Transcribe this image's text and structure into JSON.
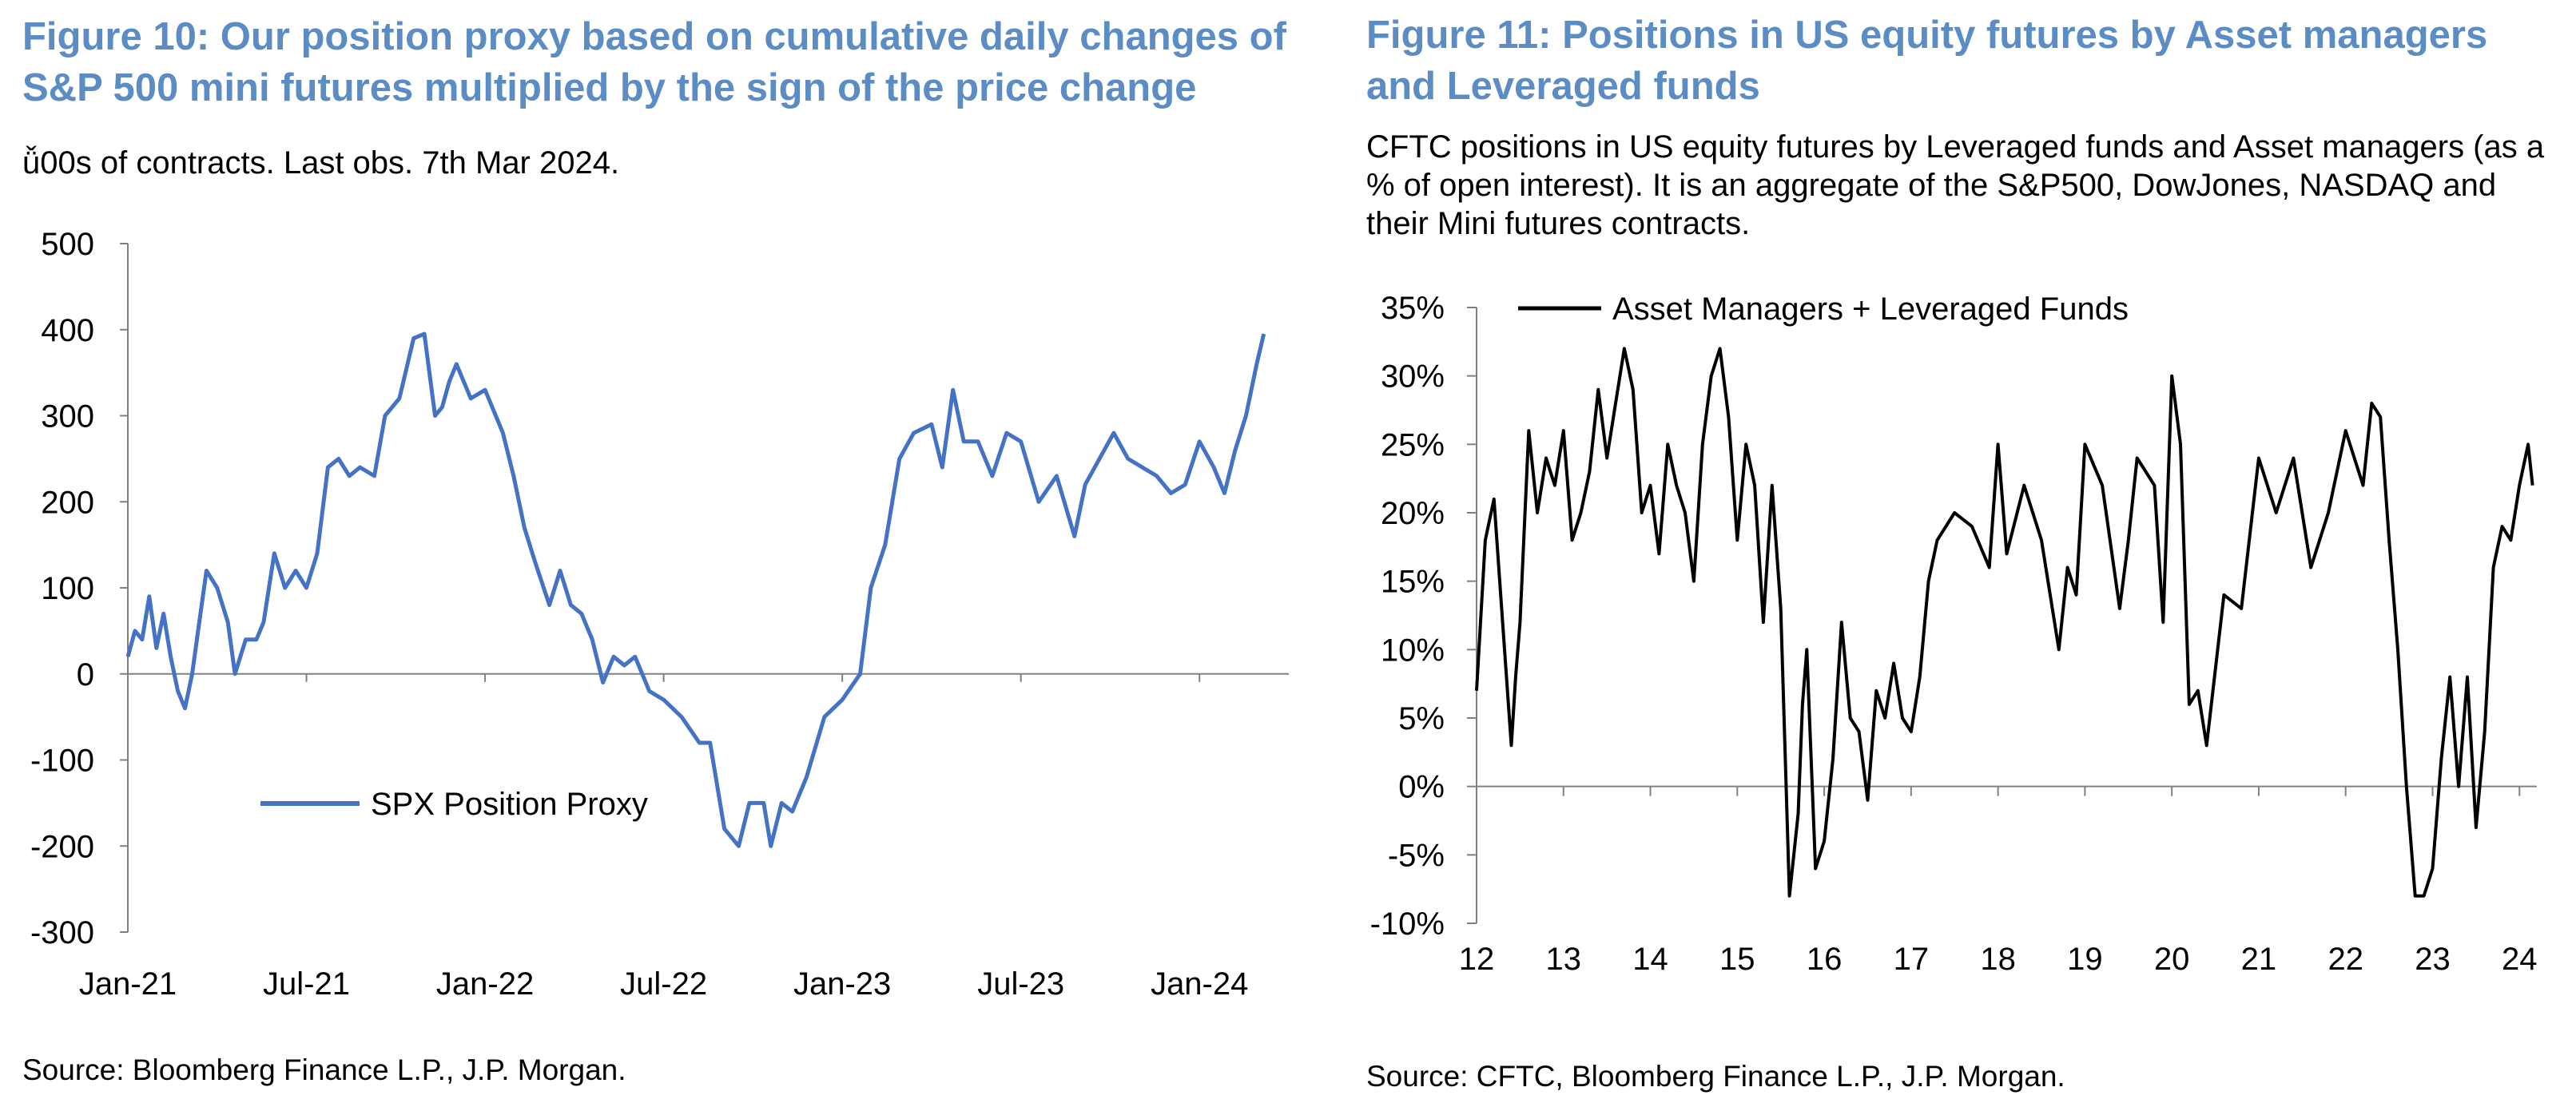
{
  "colors": {
    "title": "#5b8cc4",
    "left_series": "#4472c4",
    "right_series": "#000000",
    "axis": "#808080"
  },
  "left": {
    "title": "Figure 10: Our position proxy based on cumulative daily changes of S&P 500 mini futures multiplied by the sign of the price change",
    "subtitle": "ǚ00s of contracts. Last obs. 7th Mar 2024.",
    "source": "Source: Bloomberg Finance L.P., J.P. Morgan.",
    "chart_data": {
      "type": "line",
      "title": "Figure 10: Our position proxy based on cumulative daily changes of S&P 500 mini futures multiplied by the sign of the price change",
      "ylim": [
        -300,
        500
      ],
      "yticks": [
        500,
        400,
        300,
        200,
        100,
        0,
        -100,
        -200,
        -300
      ],
      "xlim": [
        2021.0,
        2024.25
      ],
      "xticks": [
        {
          "x": 2021.0,
          "label": "Jan-21"
        },
        {
          "x": 2021.5,
          "label": "Jul-21"
        },
        {
          "x": 2022.0,
          "label": "Jan-22"
        },
        {
          "x": 2022.5,
          "label": "Jul-22"
        },
        {
          "x": 2023.0,
          "label": "Jan-23"
        },
        {
          "x": 2023.5,
          "label": "Jul-23"
        },
        {
          "x": 2024.0,
          "label": "Jan-24"
        }
      ],
      "legend": "inside-lower-left",
      "series": [
        {
          "name": "SPX Position Proxy",
          "x": [
            2021.0,
            2021.02,
            2021.04,
            2021.06,
            2021.08,
            2021.1,
            2021.12,
            2021.14,
            2021.16,
            2021.18,
            2021.2,
            2021.22,
            2021.25,
            2021.28,
            2021.3,
            2021.33,
            2021.36,
            2021.38,
            2021.41,
            2021.44,
            2021.47,
            2021.5,
            2021.53,
            2021.56,
            2021.59,
            2021.62,
            2021.65,
            2021.69,
            2021.72,
            2021.76,
            2021.8,
            2021.83,
            2021.86,
            2021.88,
            2021.9,
            2021.92,
            2021.96,
            2022.0,
            2022.05,
            2022.08,
            2022.11,
            2022.14,
            2022.18,
            2022.21,
            2022.24,
            2022.27,
            2022.3,
            2022.33,
            2022.36,
            2022.39,
            2022.42,
            2022.46,
            2022.5,
            2022.55,
            2022.6,
            2022.63,
            2022.67,
            2022.71,
            2022.74,
            2022.78,
            2022.8,
            2022.83,
            2022.86,
            2022.9,
            2022.95,
            2023.0,
            2023.05,
            2023.08,
            2023.12,
            2023.16,
            2023.2,
            2023.25,
            2023.28,
            2023.31,
            2023.34,
            2023.38,
            2023.42,
            2023.46,
            2023.5,
            2023.55,
            2023.6,
            2023.65,
            2023.68,
            2023.72,
            2023.76,
            2023.8,
            2023.84,
            2023.88,
            2023.92,
            2023.96,
            2024.0,
            2024.04,
            2024.07,
            2024.1,
            2024.13,
            2024.16,
            2024.18
          ],
          "values": [
            20,
            50,
            40,
            90,
            30,
            70,
            20,
            -20,
            -40,
            0,
            60,
            120,
            100,
            60,
            0,
            40,
            40,
            60,
            140,
            100,
            120,
            100,
            140,
            240,
            250,
            230,
            240,
            230,
            300,
            320,
            390,
            395,
            300,
            310,
            340,
            360,
            320,
            330,
            280,
            230,
            170,
            130,
            80,
            120,
            80,
            70,
            40,
            -10,
            20,
            10,
            20,
            -20,
            -30,
            -50,
            -80,
            -80,
            -180,
            -200,
            -150,
            -150,
            -200,
            -150,
            -160,
            -120,
            -50,
            -30,
            0,
            100,
            150,
            250,
            280,
            290,
            240,
            330,
            270,
            270,
            230,
            280,
            270,
            200,
            230,
            160,
            220,
            250,
            280,
            250,
            240,
            230,
            210,
            220,
            270,
            240,
            210,
            260,
            300,
            360,
            395
          ]
        }
      ]
    }
  },
  "right": {
    "title": "Figure 11: Positions in US equity futures by Asset managers and Leveraged funds",
    "subtitle": "CFTC positions in US equity futures by Leveraged funds and Asset managers (as a % of open interest). It is an aggregate of the S&P500, DowJones, NASDAQ and their Mini futures contracts.",
    "source": "Source: CFTC, Bloomberg Finance L.P., J.P. Morgan.",
    "chart_data": {
      "type": "line",
      "title": "Figure 11: Positions in US equity futures by Asset managers and Leveraged funds",
      "ylim": [
        -10,
        35
      ],
      "yticks": [
        {
          "y": 35,
          "label": "35%"
        },
        {
          "y": 30,
          "label": "30%"
        },
        {
          "y": 25,
          "label": "25%"
        },
        {
          "y": 20,
          "label": "20%"
        },
        {
          "y": 15,
          "label": "15%"
        },
        {
          "y": 10,
          "label": "10%"
        },
        {
          "y": 5,
          "label": "5%"
        },
        {
          "y": 0,
          "label": "0%"
        },
        {
          "y": -5,
          "label": "-5%"
        },
        {
          "y": -10,
          "label": "-10%"
        }
      ],
      "xlim": [
        2012.0,
        2024.2
      ],
      "xticks": [
        {
          "x": 2012,
          "label": "12"
        },
        {
          "x": 2013,
          "label": "13"
        },
        {
          "x": 2014,
          "label": "14"
        },
        {
          "x": 2015,
          "label": "15"
        },
        {
          "x": 2016,
          "label": "16"
        },
        {
          "x": 2017,
          "label": "17"
        },
        {
          "x": 2018,
          "label": "18"
        },
        {
          "x": 2019,
          "label": "19"
        },
        {
          "x": 2020,
          "label": "20"
        },
        {
          "x": 2021,
          "label": "21"
        },
        {
          "x": 2022,
          "label": "22"
        },
        {
          "x": 2023,
          "label": "23"
        },
        {
          "x": 2024,
          "label": "24"
        }
      ],
      "legend": "top-left",
      "series": [
        {
          "name": "Asset Managers + Leveraged Funds",
          "x": [
            2012.0,
            2012.1,
            2012.2,
            2012.3,
            2012.4,
            2012.45,
            2012.5,
            2012.6,
            2012.7,
            2012.8,
            2012.9,
            2013.0,
            2013.1,
            2013.2,
            2013.3,
            2013.4,
            2013.5,
            2013.6,
            2013.7,
            2013.8,
            2013.9,
            2014.0,
            2014.1,
            2014.2,
            2014.3,
            2014.4,
            2014.5,
            2014.6,
            2014.7,
            2014.8,
            2014.9,
            2015.0,
            2015.1,
            2015.2,
            2015.3,
            2015.4,
            2015.5,
            2015.6,
            2015.7,
            2015.75,
            2015.8,
            2015.9,
            2016.0,
            2016.1,
            2016.2,
            2016.3,
            2016.4,
            2016.5,
            2016.6,
            2016.7,
            2016.8,
            2016.9,
            2017.0,
            2017.1,
            2017.2,
            2017.3,
            2017.5,
            2017.7,
            2017.9,
            2018.0,
            2018.1,
            2018.3,
            2018.5,
            2018.7,
            2018.8,
            2018.9,
            2019.0,
            2019.2,
            2019.4,
            2019.5,
            2019.6,
            2019.8,
            2019.9,
            2020.0,
            2020.1,
            2020.2,
            2020.3,
            2020.4,
            2020.6,
            2020.8,
            2021.0,
            2021.2,
            2021.4,
            2021.6,
            2021.8,
            2022.0,
            2022.2,
            2022.3,
            2022.4,
            2022.5,
            2022.6,
            2022.7,
            2022.8,
            2022.9,
            2023.0,
            2023.1,
            2023.2,
            2023.3,
            2023.4,
            2023.5,
            2023.6,
            2023.7,
            2023.8,
            2023.9,
            2024.0,
            2024.1,
            2024.15
          ],
          "values": [
            7,
            18,
            21,
            12,
            3,
            8,
            12,
            26,
            20,
            24,
            22,
            26,
            18,
            20,
            23,
            29,
            24,
            28,
            32,
            29,
            20,
            22,
            17,
            25,
            22,
            20,
            15,
            25,
            30,
            32,
            27,
            18,
            25,
            22,
            12,
            22,
            13,
            -8,
            -2,
            6,
            10,
            -6,
            -4,
            2,
            12,
            5,
            4,
            -1,
            7,
            5,
            9,
            5,
            4,
            8,
            15,
            18,
            20,
            19,
            16,
            25,
            17,
            22,
            18,
            10,
            16,
            14,
            25,
            22,
            13,
            18,
            24,
            22,
            12,
            30,
            25,
            6,
            7,
            3,
            14,
            13,
            24,
            20,
            24,
            16,
            20,
            26,
            22,
            28,
            27,
            18,
            10,
            0,
            -8,
            -8,
            -6,
            2,
            8,
            0,
            8,
            -3,
            4,
            16,
            19,
            18,
            22,
            25,
            22
          ]
        }
      ]
    }
  }
}
